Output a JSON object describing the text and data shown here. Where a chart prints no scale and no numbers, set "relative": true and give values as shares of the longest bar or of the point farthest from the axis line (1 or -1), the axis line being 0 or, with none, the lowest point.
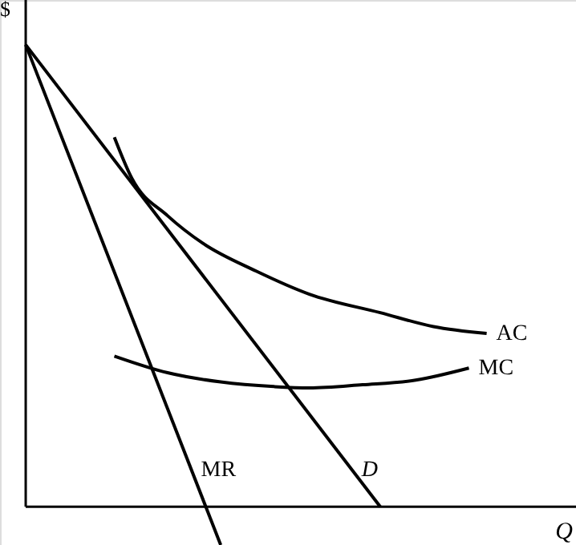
{
  "chart_data": {
    "type": "line",
    "relative": true,
    "xlabel": "Q",
    "ylabel": "$",
    "grid": false,
    "line_style": "solid",
    "marker": "none",
    "categories": [
      null,
      null,
      null,
      null,
      null,
      null,
      null,
      null,
      null,
      null,
      null,
      null,
      null,
      null,
      null,
      null,
      null,
      null,
      null,
      null,
      null,
      null,
      null,
      null,
      null,
      null,
      null,
      null,
      null,
      null
    ],
    "series": [
      {
        "name": "D",
        "color": "#000000",
        "values": [
          1,
          null,
          null,
          null,
          null,
          null,
          null,
          null,
          null,
          null,
          null,
          null,
          null,
          null,
          null,
          null,
          null,
          null,
          null,
          null,
          0,
          null,
          null,
          null,
          null,
          null,
          null,
          null,
          null,
          null
        ]
      },
      {
        "name": "MR",
        "color": "#000000",
        "values": [
          1,
          null,
          null,
          null,
          null,
          null,
          null,
          null,
          null,
          null,
          null,
          -0.083,
          null,
          null,
          null,
          null,
          null,
          null,
          null,
          null,
          null,
          null,
          null,
          null,
          null,
          null,
          null,
          null,
          null,
          null
        ]
      },
      {
        "name": "AC",
        "color": "#000000",
        "values": [
          null,
          null,
          null,
          null,
          null,
          0.8,
          0.71,
          null,
          0.63,
          null,
          0.57,
          null,
          null,
          0.51,
          null,
          null,
          0.46,
          null,
          null,
          null,
          0.42,
          null,
          null,
          0.39,
          null,
          null,
          0.375,
          null,
          null,
          null
        ]
      },
      {
        "name": "MC",
        "color": "#000000",
        "values": [
          null,
          null,
          null,
          null,
          null,
          0.326,
          null,
          null,
          0.29,
          null,
          null,
          0.27,
          null,
          null,
          0.26,
          null,
          0.257,
          null,
          null,
          0.264,
          null,
          null,
          0.274,
          null,
          null,
          0.3,
          null,
          null,
          null,
          null
        ]
      }
    ]
  }
}
